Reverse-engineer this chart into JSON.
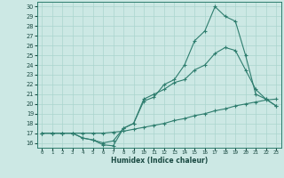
{
  "bg_color": "#cce8e4",
  "grid_color": "#aad4ce",
  "line_color": "#2e7d6e",
  "xlabel": "Humidex (Indice chaleur)",
  "xlim": [
    -0.5,
    23.5
  ],
  "ylim": [
    15.5,
    30.5
  ],
  "xticks": [
    0,
    1,
    2,
    3,
    4,
    5,
    6,
    7,
    8,
    9,
    10,
    11,
    12,
    13,
    14,
    15,
    16,
    17,
    18,
    19,
    20,
    21,
    22,
    23
  ],
  "yticks": [
    16,
    17,
    18,
    19,
    20,
    21,
    22,
    23,
    24,
    25,
    26,
    27,
    28,
    29,
    30
  ],
  "line1_x": [
    0,
    1,
    2,
    3,
    4,
    5,
    6,
    7,
    8,
    9,
    10,
    11,
    12,
    13,
    14,
    15,
    16,
    17,
    18,
    19,
    20,
    21,
    22,
    23
  ],
  "line1_y": [
    17,
    17,
    17,
    17,
    16.5,
    16.3,
    15.8,
    15.7,
    17.5,
    18.0,
    20.3,
    20.7,
    22.0,
    22.5,
    24.0,
    26.5,
    27.5,
    30.0,
    29.0,
    28.5,
    25.0,
    21.0,
    20.5,
    19.8
  ],
  "line2_x": [
    0,
    1,
    2,
    3,
    4,
    5,
    6,
    7,
    8,
    9,
    10,
    11,
    12,
    13,
    14,
    15,
    16,
    17,
    18,
    19,
    20,
    21,
    22,
    23
  ],
  "line2_y": [
    17,
    17,
    17,
    17,
    16.5,
    16.3,
    16.0,
    16.2,
    17.5,
    18.0,
    20.5,
    21.0,
    21.5,
    22.2,
    22.5,
    23.5,
    24.0,
    25.2,
    25.8,
    25.5,
    23.5,
    21.5,
    20.5,
    19.8
  ],
  "line3_x": [
    0,
    1,
    2,
    3,
    4,
    5,
    6,
    7,
    8,
    9,
    10,
    11,
    12,
    13,
    14,
    15,
    16,
    17,
    18,
    19,
    20,
    21,
    22,
    23
  ],
  "line3_y": [
    17,
    17,
    17,
    17,
    17.0,
    17.0,
    17.0,
    17.1,
    17.2,
    17.4,
    17.6,
    17.8,
    18.0,
    18.3,
    18.5,
    18.8,
    19.0,
    19.3,
    19.5,
    19.8,
    20.0,
    20.2,
    20.4,
    20.5
  ]
}
